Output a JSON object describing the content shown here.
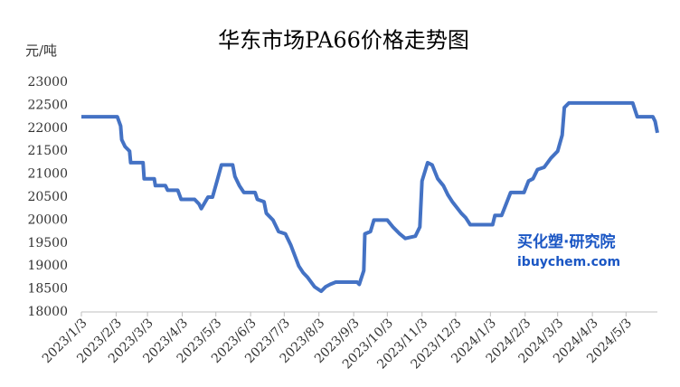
{
  "chart_data": {
    "type": "line",
    "title": "华东市场PA66价格走势图",
    "y_label": "元/吨",
    "watermark": [
      "买化塑·研究院",
      "ibuychem.com"
    ],
    "color": "#4472c4",
    "x": [
      "2023/1/3",
      "2023/2/4",
      "2023/2/7",
      "2023/2/8",
      "2023/2/11",
      "2023/2/15",
      "2023/2/16",
      "2023/2/27",
      "2023/2/28",
      "2023/3/9",
      "2023/3/10",
      "2023/3/19",
      "2023/3/21",
      "2023/3/30",
      "2023/4/2",
      "2023/4/14",
      "2023/4/18",
      "2023/4/20",
      "2023/4/26",
      "2023/4/30",
      "2023/5/4",
      "2023/5/8",
      "2023/5/18",
      "2023/5/20",
      "2023/5/24",
      "2023/5/28",
      "2023/6/7",
      "2023/6/9",
      "2023/6/15",
      "2023/6/17",
      "2023/6/23",
      "2023/6/28",
      "2023/7/4",
      "2023/7/9",
      "2023/7/16",
      "2023/7/20",
      "2023/7/24",
      "2023/7/30",
      "2023/8/5",
      "2023/8/9",
      "2023/8/13",
      "2023/8/18",
      "2023/9/6",
      "2023/9/8",
      "2023/9/12",
      "2023/9/13",
      "2023/9/18",
      "2023/9/21",
      "2023/10/3",
      "2023/10/8",
      "2023/10/14",
      "2023/10/19",
      "2023/10/28",
      "2023/11/1",
      "2023/11/3",
      "2023/11/8",
      "2023/11/12",
      "2023/11/17",
      "2023/11/22",
      "2023/11/26",
      "2023/11/30",
      "2023/12/8",
      "2023/12/12",
      "2023/12/16",
      "2024/1/5",
      "2024/1/7",
      "2024/1/13",
      "2024/1/17",
      "2024/1/21",
      "2024/2/2",
      "2024/2/6",
      "2024/2/10",
      "2024/2/14",
      "2024/2/20",
      "2024/2/26",
      "2024/3/3",
      "2024/3/7",
      "2024/3/9",
      "2024/3/13",
      "2024/5/9",
      "2024/5/13",
      "2024/5/27",
      "2024/5/29",
      "2024/5/31"
    ],
    "values": [
      22250,
      22250,
      22050,
      21750,
      21600,
      21500,
      21250,
      21250,
      20900,
      20900,
      20750,
      20750,
      20650,
      20650,
      20450,
      20450,
      20350,
      20250,
      20500,
      20500,
      20850,
      21200,
      21200,
      20950,
      20750,
      20600,
      20600,
      20450,
      20400,
      20150,
      20000,
      19750,
      19700,
      19450,
      19000,
      18850,
      18750,
      18550,
      18450,
      18550,
      18600,
      18650,
      18650,
      18600,
      18900,
      19700,
      19750,
      20000,
      20000,
      19850,
      19700,
      19600,
      19650,
      19850,
      20850,
      21250,
      21200,
      20900,
      20750,
      20550,
      20400,
      20150,
      20050,
      19900,
      19900,
      20100,
      20100,
      20350,
      20600,
      20600,
      20850,
      20900,
      21100,
      21150,
      21350,
      21500,
      21850,
      22450,
      22550,
      22550,
      22250,
      22250,
      22150,
      21900
    ],
    "xlim": [
      "2023/1/3",
      "2024/5/31"
    ],
    "xticks": [
      "2023/1/3",
      "2023/2/3",
      "2023/3/3",
      "2023/4/3",
      "2023/5/3",
      "2023/6/3",
      "2023/7/3",
      "2023/8/3",
      "2023/9/3",
      "2023/10/3",
      "2023/11/3",
      "2023/12/3",
      "2024/1/3",
      "2024/2/3",
      "2024/3/3",
      "2024/4/3",
      "2024/5/3"
    ],
    "ylim": [
      18000,
      23000
    ],
    "yticks": [
      18000,
      18500,
      19000,
      19500,
      20000,
      20500,
      21000,
      21500,
      22000,
      22500,
      23000
    ],
    "grid": false
  }
}
